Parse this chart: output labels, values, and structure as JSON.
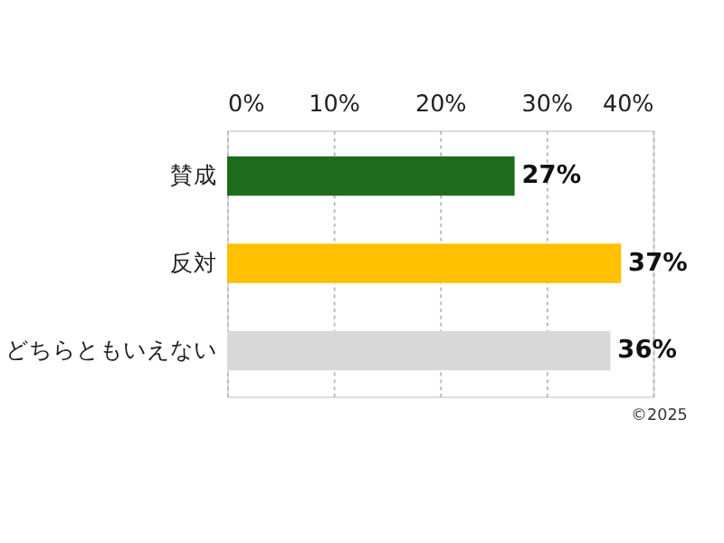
{
  "chart_data": {
    "type": "bar",
    "orientation": "horizontal",
    "categories": [
      "賛成",
      "反対",
      "どちらともいえない"
    ],
    "values": [
      27,
      37,
      36
    ],
    "colors": [
      "#1e6b1e",
      "#ffc000",
      "#d9d9d9"
    ],
    "value_labels": [
      "27%",
      "37%",
      "36%"
    ],
    "xlim": [
      0,
      40
    ],
    "xticks": [
      {
        "value": 0,
        "label": "0%"
      },
      {
        "value": 10,
        "label": "10%"
      },
      {
        "value": 20,
        "label": "20%"
      },
      {
        "value": 30,
        "label": "30%"
      },
      {
        "value": 40,
        "label": "40%"
      }
    ],
    "grid": "x",
    "annotations": [
      "©2025"
    ]
  }
}
